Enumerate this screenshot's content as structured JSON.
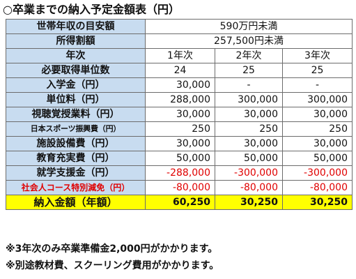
{
  "title": "○卒業までの納入予定金額表（円）",
  "income_row": {
    "label": "世帯年収の目安額",
    "value": "590万円未満"
  },
  "tax_row": {
    "label": "所得割額",
    "value": "257,500円未満"
  },
  "year_header": {
    "label": "年次",
    "years": [
      "1年次",
      "2年次",
      "3年次"
    ]
  },
  "rows": [
    {
      "label": "必要取得単位数",
      "values": [
        "24",
        "25",
        "25"
      ]
    },
    {
      "label": "入学金（円）",
      "values": [
        "30,000",
        "-",
        "-"
      ]
    },
    {
      "label": "単位料（円）",
      "values": [
        "288,000",
        "300,000",
        "300,000"
      ]
    },
    {
      "label": "視聴覚授業料（円）",
      "values": [
        "30,000",
        "30,000",
        "30,000"
      ]
    },
    {
      "label": "日本スポーツ振興費（円）",
      "values": [
        "250",
        "250",
        "250"
      ]
    },
    {
      "label": "施設設備費（円）",
      "values": [
        "30,000",
        "30,000",
        "30,000"
      ]
    },
    {
      "label": "教育充実費（円）",
      "values": [
        "50,000",
        "50,000",
        "50,000"
      ]
    },
    {
      "label": "就学支援金（円）",
      "values": [
        "-288,000",
        "-300,000",
        "-300,000"
      ]
    },
    {
      "label": "社会人コース特別減免（円）",
      "values": [
        "-80,000",
        "-80,000",
        "-80,000"
      ]
    }
  ],
  "total_row": {
    "label": "納入金額（年額）",
    "values": [
      "60,250",
      "30,250",
      "30,250"
    ]
  },
  "notes": [
    "※3年次のみ卒業準備金2,000円がかかります。",
    "※別途教材費、スクーリング費用がかかります。"
  ],
  "colors": {
    "label_background": "#c8dcf0",
    "total_background": "#ffff00",
    "negative_text": "#e00000",
    "border": "#6c6c6c"
  }
}
